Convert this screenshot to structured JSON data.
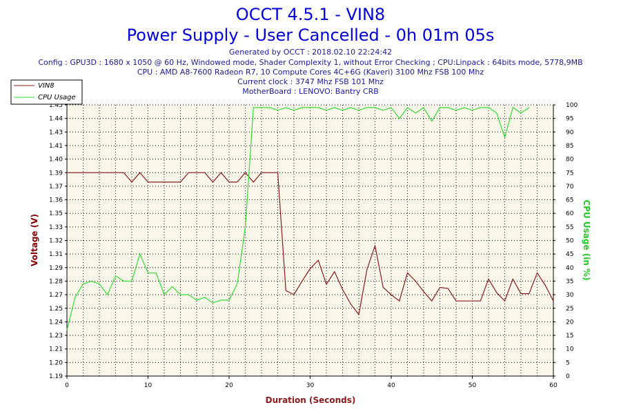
{
  "header": {
    "title": "OCCT 4.5.1 - VIN8",
    "subtitle": "Power Supply - User Cancelled - 0h 01m 05s",
    "info_lines": [
      "Generated by OCCT : 2018.02.10 22:24:42",
      "Config : GPU3D : 1680 x 1050 @ 60 Hz, Windowed mode, Shader Complexity 1, without Error Checking ; CPU:Linpack : 64bits mode, 5778,9MB",
      "CPU : AMD A8-7600 Radeon R7, 10 Compute Cores 4C+6G (Kaveri) 3100 Mhz FSB 100 Mhz",
      "Current clock : 3747 Mhz FSB 101 Mhz",
      "MotherBoard : LENOVO: Bantry CRB"
    ]
  },
  "colors": {
    "vin8": "#8b1a1a",
    "cpu": "#33dd33",
    "plot_bg": "#fbf6ea",
    "title": "#0000dd"
  },
  "chart_data": {
    "type": "line",
    "xlabel": "Duration (Seconds)",
    "ylabel_left": "Voltage (V)",
    "ylabel_right": "CPU Usage (in %)",
    "xlim": [
      0,
      60
    ],
    "ylim_left": [
      1.19,
      1.45
    ],
    "ylim_right": [
      0,
      100
    ],
    "x_ticks": [
      0,
      10,
      20,
      30,
      40,
      50,
      60
    ],
    "y_left_ticks": [
      "1.19",
      "1.20",
      "1.21",
      "1.23",
      "1.24",
      "1.25",
      "1.27",
      "1.28",
      "1.29",
      "1.31",
      "1.32",
      "1.33",
      "1.35",
      "1.36",
      "1.37",
      "1.39",
      "1.40",
      "1.41",
      "1.43",
      "1.44",
      "1.45"
    ],
    "y_right_ticks": [
      0,
      5,
      10,
      15,
      20,
      25,
      30,
      35,
      40,
      45,
      50,
      55,
      60,
      65,
      70,
      75,
      80,
      85,
      90,
      95,
      100
    ],
    "grid": true,
    "legend_position": "top-left",
    "series": [
      {
        "name": "VIN8",
        "axis": "left",
        "x": [
          0,
          1,
          2,
          3,
          4,
          5,
          6,
          7,
          8,
          9,
          10,
          11,
          12,
          13,
          14,
          15,
          16,
          17,
          18,
          19,
          20,
          21,
          22,
          23,
          24,
          25,
          26,
          27,
          28,
          29,
          30,
          31,
          32,
          33,
          34,
          35,
          36,
          37,
          38,
          39,
          40,
          41,
          42,
          43,
          44,
          45,
          46,
          47,
          48,
          49,
          50,
          51,
          52,
          53,
          54,
          55,
          56,
          57,
          58,
          59,
          60
        ],
        "y": [
          1.385,
          1.385,
          1.385,
          1.385,
          1.385,
          1.385,
          1.385,
          1.385,
          1.376,
          1.385,
          1.376,
          1.376,
          1.376,
          1.376,
          1.376,
          1.385,
          1.385,
          1.385,
          1.376,
          1.385,
          1.376,
          1.376,
          1.385,
          1.376,
          1.385,
          1.385,
          1.385,
          1.272,
          1.268,
          1.281,
          1.293,
          1.301,
          1.278,
          1.29,
          1.273,
          1.259,
          1.249,
          1.292,
          1.315,
          1.275,
          1.268,
          1.262,
          1.289,
          1.281,
          1.271,
          1.262,
          1.275,
          1.274,
          1.262,
          1.262,
          1.262,
          1.262,
          1.283,
          1.27,
          1.262,
          1.283,
          1.269,
          1.269,
          1.289,
          1.277,
          1.262
        ]
      },
      {
        "name": "CPU Usage",
        "axis": "right",
        "x": [
          0,
          1,
          2,
          3,
          4,
          5,
          6,
          7,
          8,
          9,
          10,
          11,
          12,
          13,
          14,
          15,
          16,
          17,
          18,
          19,
          20,
          21,
          22,
          23,
          24,
          25,
          26,
          27,
          28,
          29,
          30,
          31,
          32,
          33,
          34,
          35,
          36,
          37,
          38,
          39,
          40,
          41,
          42,
          43,
          44,
          45,
          46,
          47,
          48,
          49,
          50,
          51,
          52,
          53,
          54,
          55,
          56,
          57
        ],
        "y": [
          17,
          29,
          34,
          35,
          34,
          30,
          37,
          35,
          35,
          45,
          38,
          38,
          30,
          33,
          30,
          30,
          28,
          29,
          27,
          28,
          28,
          34,
          55,
          99,
          99,
          99,
          98,
          99,
          98,
          99,
          99,
          99,
          98,
          99,
          98,
          99,
          98,
          99,
          99,
          98,
          99,
          95,
          99,
          97,
          99,
          94,
          99,
          99,
          98,
          99,
          98,
          99,
          99,
          97,
          88,
          99,
          97,
          99
        ]
      }
    ]
  }
}
